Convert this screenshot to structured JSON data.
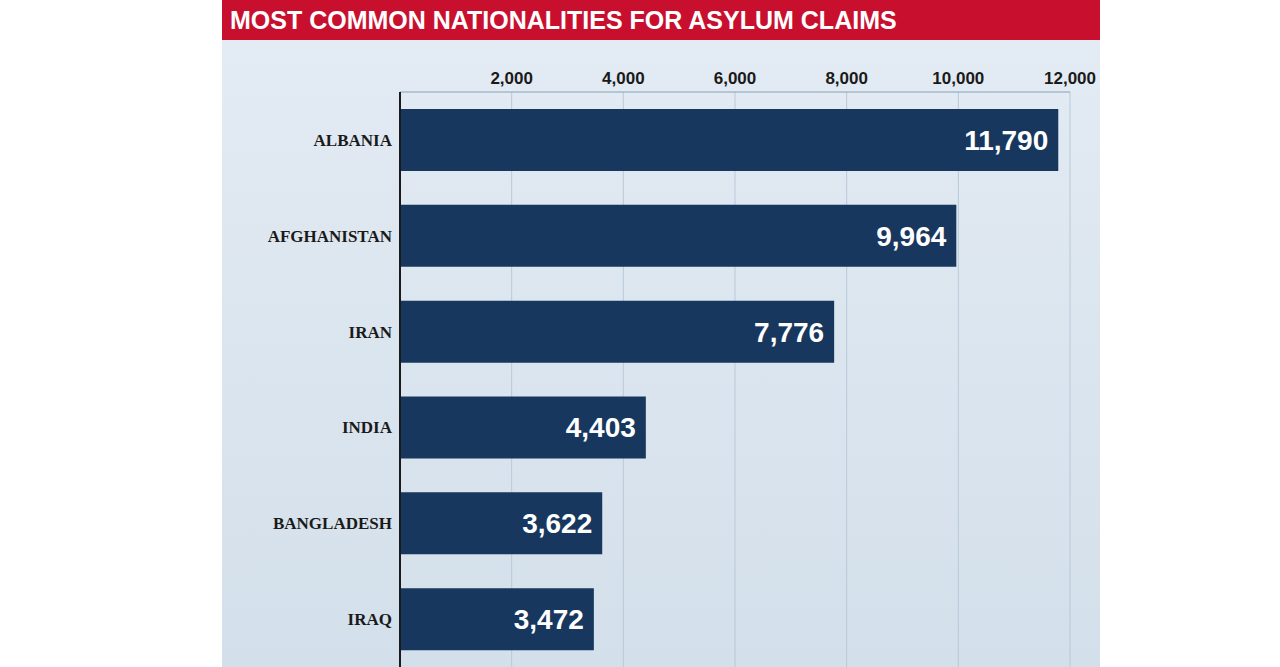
{
  "chart_data": {
    "type": "bar",
    "title": "MOST COMMON NATIONALITIES FOR ASYLUM CLAIMS",
    "orientation": "horizontal",
    "categories": [
      "ALBANIA",
      "AFGHANISTAN",
      "IRAN",
      "INDIA",
      "BANGLADESH",
      "IRAQ"
    ],
    "values": [
      11790,
      9964,
      7776,
      4403,
      3622,
      3472
    ],
    "value_labels": [
      "11,790",
      "9,964",
      "7,776",
      "4,403",
      "3,622",
      "3,472"
    ],
    "data_labels": true,
    "color": "#17375e",
    "xlim": [
      0,
      12000
    ],
    "xticks": [
      {
        "value": 2000,
        "label": "2,000"
      },
      {
        "value": 4000,
        "label": "4,000"
      },
      {
        "value": 6000,
        "label": "6,000"
      },
      {
        "value": 8000,
        "label": "8,000"
      },
      {
        "value": 10000,
        "label": "10,000"
      },
      {
        "value": 12000,
        "label": "12,000"
      }
    ],
    "grid": true
  }
}
